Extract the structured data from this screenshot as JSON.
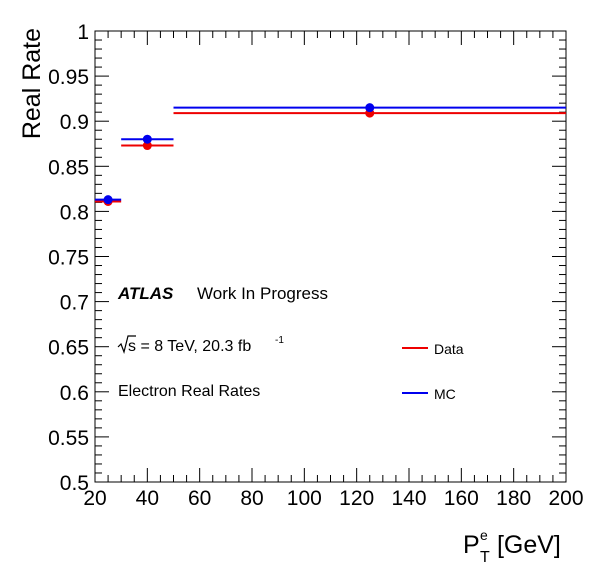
{
  "chart_data": {
    "type": "scatter",
    "title": "",
    "xlabel": "P",
    "xlabel_super": "e",
    "xlabel_sub": "T",
    "xlabel_unit": " [GeV]",
    "ylabel": "Real Rate",
    "xlim": [
      20,
      200
    ],
    "ylim": [
      0.5,
      1.0
    ],
    "grid": false,
    "x_ticks": [
      "20",
      "40",
      "60",
      "80",
      "100",
      "120",
      "140",
      "160",
      "180",
      "200"
    ],
    "y_ticks": [
      "0.5",
      "0.55",
      "0.6",
      "0.65",
      "0.7",
      "0.75",
      "0.8",
      "0.85",
      "0.9",
      "0.95",
      "1"
    ],
    "series": [
      {
        "name": "Data",
        "color": "#ee0000",
        "points": [
          {
            "x": 25,
            "xlo": 20,
            "xhi": 30,
            "y": 0.811
          },
          {
            "x": 40,
            "xlo": 30,
            "xhi": 50,
            "y": 0.873
          },
          {
            "x": 125,
            "xlo": 50,
            "xhi": 200,
            "y": 0.909
          }
        ]
      },
      {
        "name": "MC",
        "color": "#0000ee",
        "points": [
          {
            "x": 25,
            "xlo": 20,
            "xhi": 30,
            "y": 0.813
          },
          {
            "x": 40,
            "xlo": 30,
            "xhi": 50,
            "y": 0.88
          },
          {
            "x": 125,
            "xlo": 50,
            "xhi": 200,
            "y": 0.915
          }
        ]
      }
    ],
    "annotations": {
      "atlas": "ATLAS",
      "status": "Work In Progress",
      "sqrt_symbol": "√",
      "energy_text": "s = 8 TeV, 20.3 fb",
      "lumi_exponent": "-1",
      "selection": "Electron Real Rates"
    },
    "legend": {
      "placement": "right-middle",
      "entries": [
        "Data",
        "MC"
      ]
    }
  }
}
